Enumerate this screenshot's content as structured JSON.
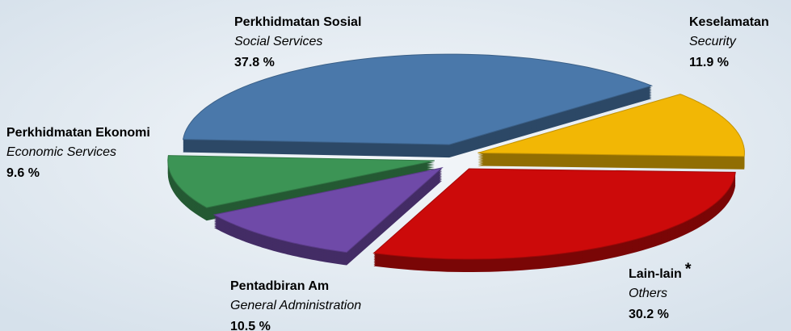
{
  "chart_data": {
    "type": "pie",
    "categories": [
      "Perkhidmatan Sosial",
      "Keselamatan",
      "Lain-lain",
      "Pentadbiran Am",
      "Perkhidmatan Ekonomi"
    ],
    "subcategories": [
      "Social Services",
      "Security",
      "Others",
      "General Administration",
      "Economic Services"
    ],
    "values": [
      37.8,
      11.9,
      30.2,
      10.5,
      9.6
    ],
    "value_labels": [
      "37.8 %",
      "11.9 %",
      "30.2 %",
      "10.5 %",
      "9.6 %"
    ],
    "colors": [
      "#4a78aa",
      "#f2b705",
      "#cc0a0a",
      "#6f4aa8",
      "#3c9455"
    ],
    "annotations": [
      "*"
    ]
  }
}
